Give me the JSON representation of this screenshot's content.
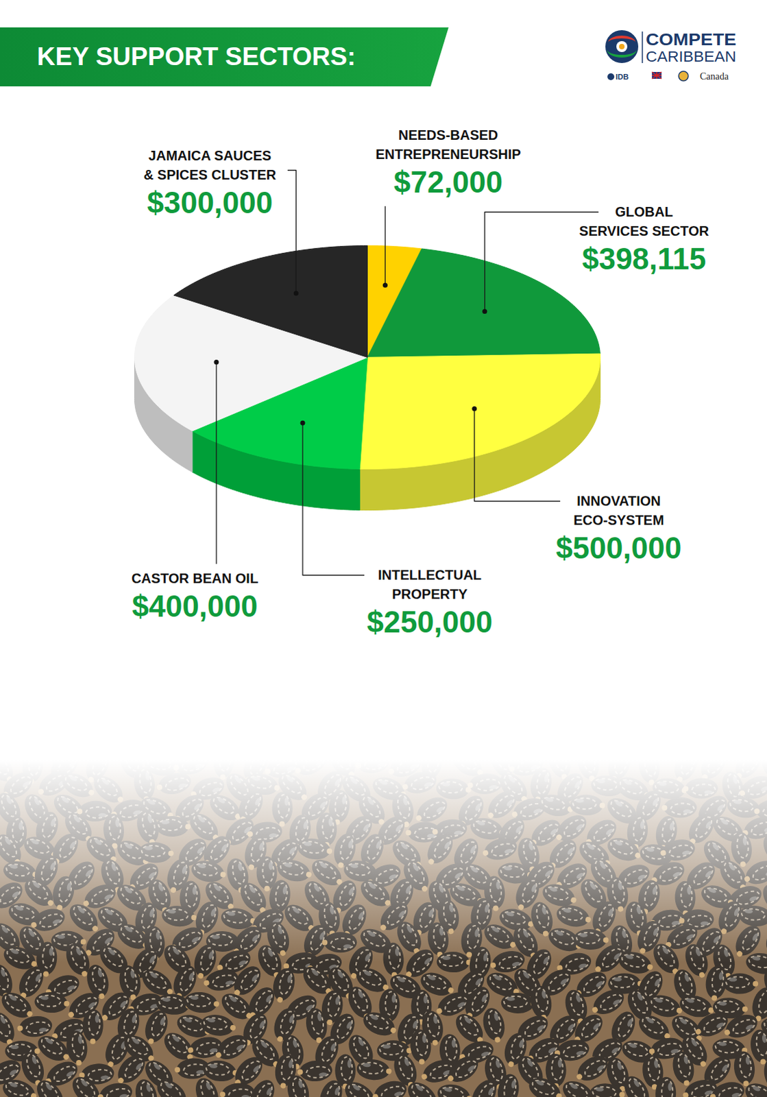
{
  "chart_data": {
    "type": "pie",
    "title": "KEY SUPPORT SECTORS:",
    "annotations": [
      "COMPETE CARIBBEAN",
      "IDB",
      "Canada"
    ],
    "categories": [
      "NEEDS-BASED ENTREPRENEURSHIP",
      "GLOBAL SERVICES SECTOR",
      "INNOVATION ECO-SYSTEM",
      "INTELLECTUAL PROPERTY",
      "CASTOR BEAN OIL",
      "JAMAICA SAUCES & SPICES CLUSTER"
    ],
    "values": [
      72000,
      398115,
      500000,
      250000,
      400000,
      300000
    ],
    "value_labels": [
      "$72,000",
      "$398,115",
      "$500,000",
      "$250,000",
      "$400,000",
      "$300,000"
    ],
    "colors": [
      "#ffd200",
      "#10993b",
      "#ffff40",
      "#00cc48",
      "#f4f4f4",
      "#262626"
    ],
    "data_labels": true
  }
}
